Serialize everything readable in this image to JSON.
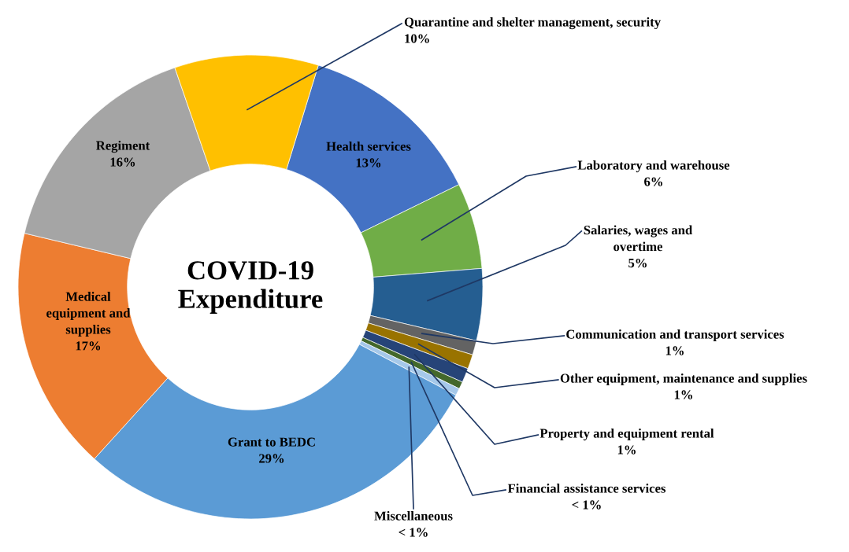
{
  "chart_data": {
    "type": "donut",
    "title": "COVID-19\nExpenditure",
    "categories": [
      "Health services",
      "Laboratory and warehouse",
      "Salaries, wages and\novertime",
      "Communication and transport services",
      "Other equipment, maintenance and supplies",
      "Property and equipment rental",
      "Financial assistance services",
      "Miscellaneous",
      "Grant to BEDC",
      "Medical\nequipment and\nsupplies",
      "Regiment",
      "Quarantine and shelter management, security"
    ],
    "values": [
      13,
      6,
      5,
      1,
      1,
      1,
      0.5,
      0.5,
      29,
      17,
      16,
      10
    ],
    "value_labels": [
      "13%",
      "6%",
      "5%",
      "1%",
      "1%",
      "1%",
      "< 1%",
      "< 1%",
      "29%",
      "17%",
      "16%",
      "10%"
    ],
    "colors": [
      "#4472c4",
      "#70ad47",
      "#255e91",
      "#636363",
      "#997300",
      "#264478",
      "#43682b",
      "#a5c8e9",
      "#5b9bd5",
      "#ed7d31",
      "#a5a5a5",
      "#ffc000"
    ],
    "legend": false
  }
}
